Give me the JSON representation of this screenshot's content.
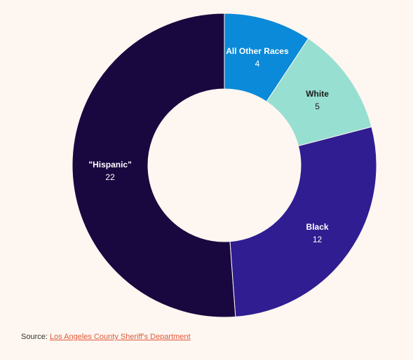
{
  "chart_data": {
    "type": "pie",
    "donut": true,
    "categories": [
      "All Other Races",
      "White",
      "Black",
      "\"Hispanic\""
    ],
    "values": [
      4,
      5,
      12,
      22
    ],
    "colors": [
      "#0a8ad8",
      "#97dfd0",
      "#2f1d91",
      "#19083f"
    ],
    "label_colors": [
      "#ffffff",
      "#1a1a1a",
      "#ffffff",
      "#ffffff"
    ],
    "legend": "none"
  },
  "source": {
    "prefix": "Source: ",
    "link_text": "Los Angeles County Sheriff's Department"
  }
}
